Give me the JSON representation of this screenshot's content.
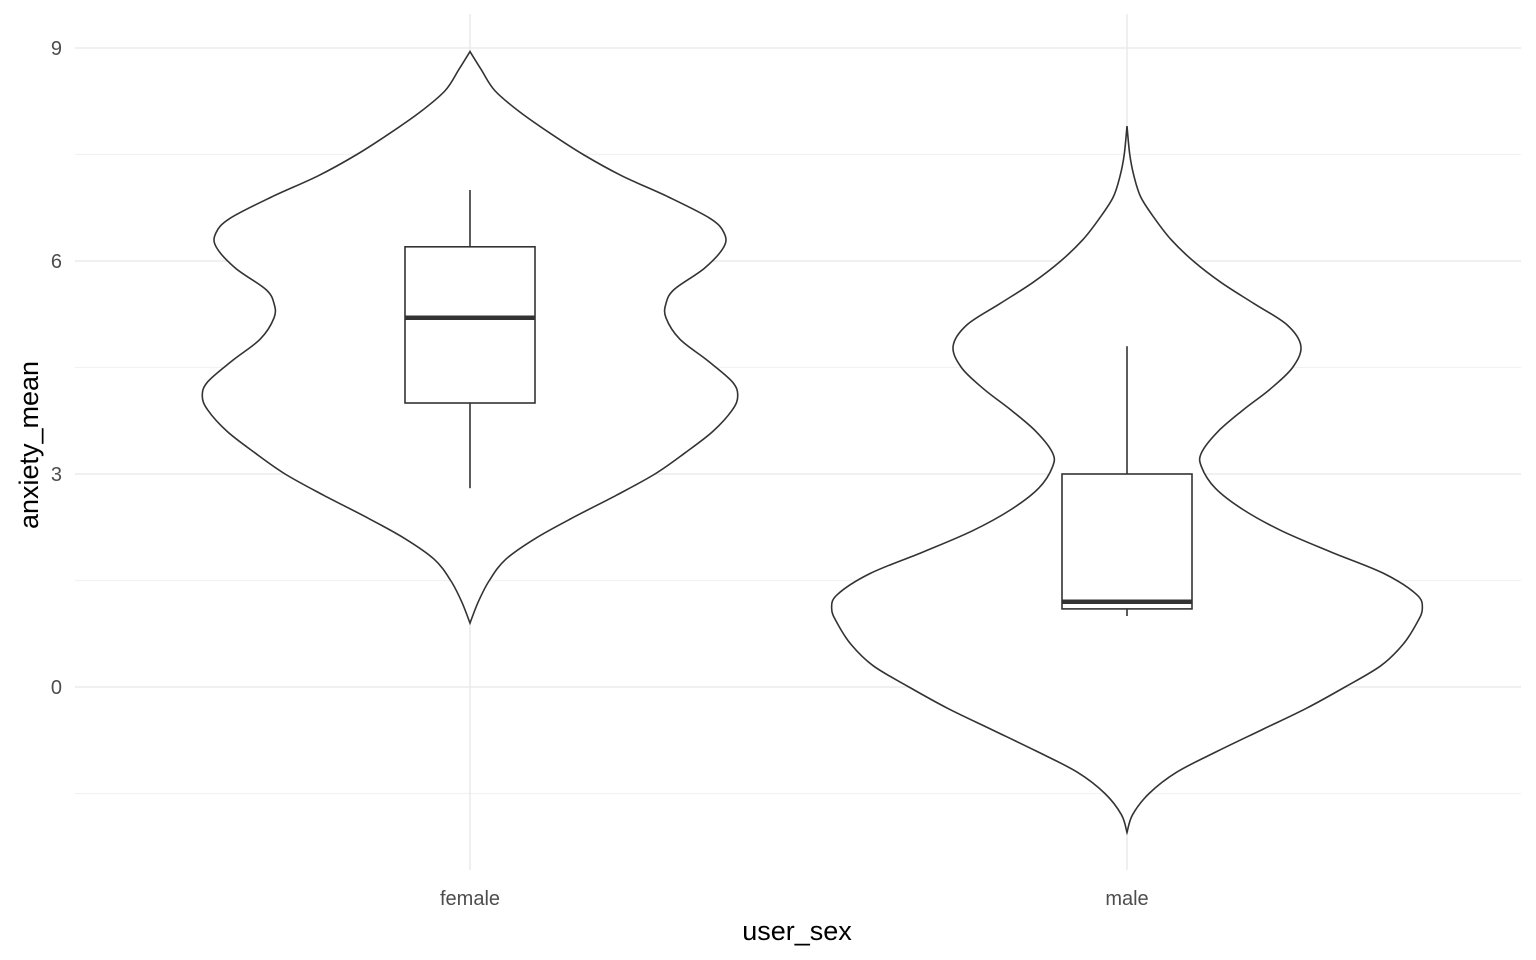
{
  "chart_data": {
    "type": "violin",
    "title": "",
    "xlabel": "user_sex",
    "ylabel": "anxiety_mean",
    "categories": [
      "female",
      "male"
    ],
    "ylim": [
      -2.6,
      9.5
    ],
    "y_ticks": [
      0,
      3,
      6,
      9
    ],
    "y_minor_ticks": [
      -1.5,
      1.5,
      4.5,
      7.5
    ],
    "grid": true,
    "legend": "none",
    "colors": {
      "outline": "#333333",
      "fill": "#ffffff",
      "grid": "#ebebeb",
      "tick_text": "#4d4d4d"
    },
    "violins": [
      {
        "category": "female",
        "profile": [
          [
            0.9,
            0.0
          ],
          [
            1.2,
            0.03
          ],
          [
            1.5,
            0.07
          ],
          [
            1.8,
            0.13
          ],
          [
            2.1,
            0.24
          ],
          [
            2.4,
            0.38
          ],
          [
            2.7,
            0.53
          ],
          [
            3.0,
            0.67
          ],
          [
            3.3,
            0.78
          ],
          [
            3.6,
            0.88
          ],
          [
            3.9,
            0.95
          ],
          [
            4.1,
            0.97
          ],
          [
            4.3,
            0.95
          ],
          [
            4.6,
            0.86
          ],
          [
            4.9,
            0.76
          ],
          [
            5.2,
            0.71
          ],
          [
            5.4,
            0.71
          ],
          [
            5.6,
            0.74
          ],
          [
            5.9,
            0.85
          ],
          [
            6.2,
            0.92
          ],
          [
            6.4,
            0.92
          ],
          [
            6.6,
            0.87
          ],
          [
            6.9,
            0.72
          ],
          [
            7.2,
            0.55
          ],
          [
            7.5,
            0.41
          ],
          [
            7.8,
            0.29
          ],
          [
            8.1,
            0.18
          ],
          [
            8.4,
            0.09
          ],
          [
            8.7,
            0.04
          ],
          [
            8.95,
            0.0
          ]
        ],
        "box": {
          "lower_whisker": 2.8,
          "q1": 4.0,
          "median": 5.2,
          "q3": 6.2,
          "upper_whisker": 7.0
        }
      },
      {
        "category": "male",
        "profile": [
          [
            -2.05,
            0.0
          ],
          [
            -1.8,
            0.02
          ],
          [
            -1.5,
            0.08
          ],
          [
            -1.2,
            0.18
          ],
          [
            -0.9,
            0.33
          ],
          [
            -0.6,
            0.49
          ],
          [
            -0.3,
            0.65
          ],
          [
            0.0,
            0.79
          ],
          [
            0.3,
            0.92
          ],
          [
            0.6,
            1.0
          ],
          [
            0.9,
            1.05
          ],
          [
            1.1,
            1.07
          ],
          [
            1.3,
            1.05
          ],
          [
            1.6,
            0.93
          ],
          [
            1.9,
            0.74
          ],
          [
            2.2,
            0.56
          ],
          [
            2.5,
            0.42
          ],
          [
            2.8,
            0.32
          ],
          [
            3.1,
            0.27
          ],
          [
            3.3,
            0.27
          ],
          [
            3.6,
            0.33
          ],
          [
            3.9,
            0.42
          ],
          [
            4.2,
            0.52
          ],
          [
            4.5,
            0.6
          ],
          [
            4.8,
            0.63
          ],
          [
            5.1,
            0.58
          ],
          [
            5.4,
            0.46
          ],
          [
            5.7,
            0.34
          ],
          [
            6.0,
            0.24
          ],
          [
            6.3,
            0.16
          ],
          [
            6.6,
            0.1
          ],
          [
            6.9,
            0.05
          ],
          [
            7.2,
            0.025
          ],
          [
            7.5,
            0.01
          ],
          [
            7.9,
            0.0
          ]
        ],
        "box": {
          "lower_whisker": 1.0,
          "q1": 1.1,
          "median": 1.2,
          "q3": 3.0,
          "upper_whisker": 4.8
        }
      }
    ]
  }
}
